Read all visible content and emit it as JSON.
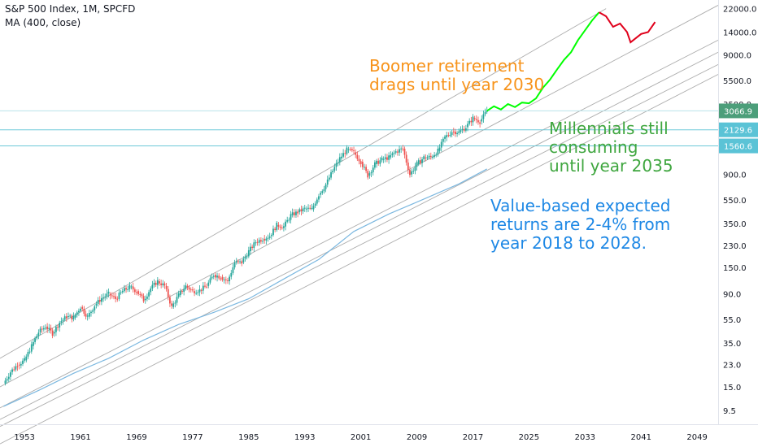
{
  "header": {
    "symbol_line": "S&P 500 Index, 1M, SPCFD",
    "indicator_line": "MA (400, close)"
  },
  "annotations": {
    "boomer": [
      "Boomer retirement",
      "drags until year 2030"
    ],
    "millennials": [
      "Millennials still",
      "consuming",
      "until year 2035"
    ],
    "value": [
      "Value-based expected",
      "returns are 2-4% from",
      "year 2018 to 2028."
    ]
  },
  "colors": {
    "boomer": "#f7931a",
    "millennials": "#3fa63f",
    "value": "#1e88e5",
    "price_up": "#26a69a",
    "price_down": "#ef5350",
    "ma": "#7cb8e0",
    "hline": "#6cc8d8",
    "channel": "#9e9e9e",
    "proj_green": "#00ff00",
    "proj_red": "#e0001b",
    "label_green": "#4c9e7a",
    "label_cyan": "#5bc3d6"
  },
  "chart_data": {
    "type": "line",
    "scale": "log",
    "x_ticks": [
      "1953",
      "1961",
      "1969",
      "1977",
      "1985",
      "1993",
      "2001",
      "2009",
      "2017",
      "2025",
      "2033",
      "2041",
      "2049"
    ],
    "y_ticks": [
      "22000.0",
      "14000.0",
      "9000.0",
      "5500.0",
      "3500.0",
      "2129.6",
      "1560.6",
      "900.0",
      "550.0",
      "350.0",
      "230.0",
      "150.0",
      "90.0",
      "55.0",
      "35.0",
      "23.0",
      "15.0",
      "9.5"
    ],
    "xlim": [
      1949.5,
      2052
    ],
    "ylim": [
      7.3,
      26000
    ],
    "price_labels": [
      {
        "value": 3066.9,
        "text": "3066.9",
        "color": "label_green"
      },
      {
        "value": 2129.6,
        "text": "2129.6",
        "color": "label_cyan"
      },
      {
        "value": 1560.6,
        "text": "1560.6",
        "color": "label_cyan"
      }
    ],
    "horizontal_lines": [
      3066.9,
      2129.6,
      1560.6
    ],
    "series": [
      {
        "style": "candles",
        "points": [
          [
            1950,
            16
          ],
          [
            1951,
            20
          ],
          [
            1952,
            23
          ],
          [
            1953,
            25
          ],
          [
            1954,
            33
          ],
          [
            1955,
            43
          ],
          [
            1956,
            48
          ],
          [
            1957,
            42
          ],
          [
            1958,
            52
          ],
          [
            1959,
            58
          ],
          [
            1960,
            57
          ],
          [
            1961,
            70
          ],
          [
            1962,
            58
          ],
          [
            1963,
            72
          ],
          [
            1964,
            83
          ],
          [
            1965,
            90
          ],
          [
            1966,
            82
          ],
          [
            1967,
            95
          ],
          [
            1968,
            103
          ],
          [
            1969,
            95
          ],
          [
            1970,
            80
          ],
          [
            1971,
            100
          ],
          [
            1972,
            115
          ],
          [
            1973,
            105
          ],
          [
            1974,
            70
          ],
          [
            1975,
            88
          ],
          [
            1976,
            105
          ],
          [
            1977,
            95
          ],
          [
            1978,
            97
          ],
          [
            1979,
            105
          ],
          [
            1980,
            130
          ],
          [
            1981,
            125
          ],
          [
            1982,
            115
          ],
          [
            1983,
            165
          ],
          [
            1984,
            165
          ],
          [
            1985,
            205
          ],
          [
            1986,
            245
          ],
          [
            1987,
            260
          ],
          [
            1988,
            275
          ],
          [
            1989,
            340
          ],
          [
            1990,
            330
          ],
          [
            1991,
            410
          ],
          [
            1992,
            435
          ],
          [
            1993,
            465
          ],
          [
            1994,
            460
          ],
          [
            1995,
            610
          ],
          [
            1996,
            740
          ],
          [
            1997,
            970
          ],
          [
            1998,
            1230
          ],
          [
            1999,
            1450
          ],
          [
            2000,
            1380
          ],
          [
            2001,
            1150
          ],
          [
            2002,
            880
          ],
          [
            2003,
            1100
          ],
          [
            2004,
            1200
          ],
          [
            2005,
            1250
          ],
          [
            2006,
            1400
          ],
          [
            2007,
            1480
          ],
          [
            2008,
            900
          ],
          [
            2009,
            1100
          ],
          [
            2010,
            1250
          ],
          [
            2011,
            1260
          ],
          [
            2012,
            1420
          ],
          [
            2013,
            1840
          ],
          [
            2014,
            2060
          ],
          [
            2015,
            2040
          ],
          [
            2016,
            2240
          ],
          [
            2017,
            2670
          ],
          [
            2018,
            2500
          ],
          [
            2019,
            3066.9
          ]
        ]
      },
      {
        "name": "MA (400, close)",
        "style": "line",
        "color": "ma",
        "points": [
          [
            1950,
            10.3
          ],
          [
            1955,
            14
          ],
          [
            1960,
            19.5
          ],
          [
            1965,
            26
          ],
          [
            1970,
            37
          ],
          [
            1975,
            50
          ],
          [
            1980,
            63
          ],
          [
            1985,
            82
          ],
          [
            1990,
            120
          ],
          [
            1995,
            175
          ],
          [
            2000,
            300
          ],
          [
            2005,
            420
          ],
          [
            2010,
            560
          ],
          [
            2015,
            750
          ],
          [
            2019,
            1000
          ]
        ]
      },
      {
        "style": "line",
        "color": "proj_green",
        "points": [
          [
            2019,
            3066.9
          ],
          [
            2020,
            3350
          ],
          [
            2021,
            3150
          ],
          [
            2022,
            3500
          ],
          [
            2023,
            3300
          ],
          [
            2024,
            3600
          ],
          [
            2025,
            3550
          ],
          [
            2026,
            3900
          ],
          [
            2027,
            4800
          ],
          [
            2028,
            5600
          ],
          [
            2029,
            6800
          ],
          [
            2030,
            8200
          ],
          [
            2031,
            9500
          ],
          [
            2032,
            12000
          ],
          [
            2033,
            14500
          ],
          [
            2034,
            17500
          ],
          [
            2035,
            20500
          ]
        ]
      },
      {
        "style": "line",
        "color": "proj_red",
        "points": [
          [
            2035,
            20500
          ],
          [
            2036,
            19000
          ],
          [
            2037,
            15500
          ],
          [
            2038,
            16500
          ],
          [
            2039,
            14000
          ],
          [
            2039.5,
            11500
          ],
          [
            2041,
            13500
          ],
          [
            2042,
            14000
          ],
          [
            2043,
            17000
          ]
        ]
      }
    ],
    "channel_lines": [
      {
        "color": "channel",
        "points": [
          [
            1949.5,
            26
          ],
          [
            2036,
            22000
          ]
        ]
      },
      {
        "color": "channel",
        "points": [
          [
            1949.5,
            15
          ],
          [
            2052,
            23500
          ]
        ]
      },
      {
        "color": "channel",
        "points": [
          [
            1949.5,
            10
          ],
          [
            2052,
            12000
          ]
        ]
      },
      {
        "color": "channel",
        "points": [
          [
            1949.5,
            8
          ],
          [
            2052,
            9500
          ]
        ]
      },
      {
        "color": "channel",
        "points": [
          [
            1949.5,
            7
          ],
          [
            2052,
            7500
          ]
        ]
      },
      {
        "color": "channel",
        "points": [
          [
            1949.5,
            5
          ],
          [
            2052,
            6200
          ]
        ]
      }
    ]
  }
}
